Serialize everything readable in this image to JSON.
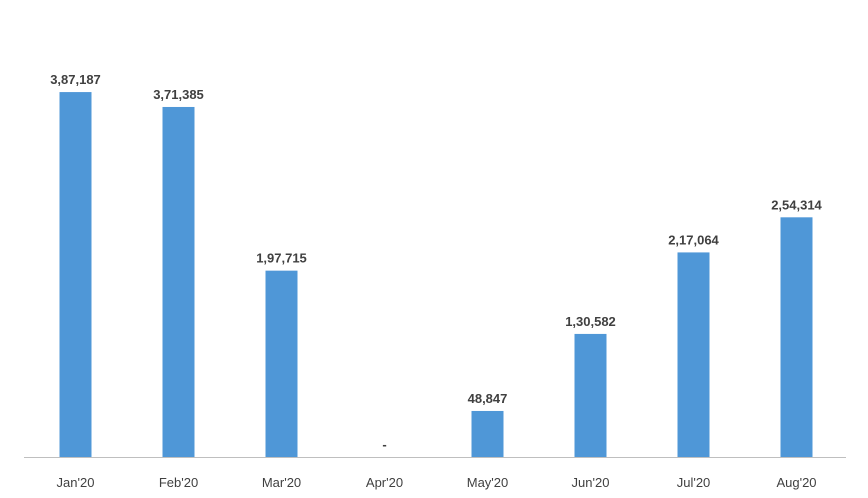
{
  "chart_data": {
    "type": "bar",
    "categories": [
      "Jan'20",
      "Feb'20",
      "Mar'20",
      "Apr'20",
      "May'20",
      "Jun'20",
      "Jul'20",
      "Aug'20"
    ],
    "values": [
      387187,
      371385,
      197715,
      0,
      48847,
      130582,
      217064,
      254314
    ],
    "data_labels": [
      "3,87,187",
      "3,71,385",
      "1,97,715",
      "-",
      "48,847",
      "1,30,582",
      "2,17,064",
      "2,54,314"
    ],
    "title": "",
    "xlabel": "",
    "ylabel": "",
    "ylim": [
      0,
      400000
    ],
    "grid": false,
    "legend": "none",
    "bar_color": "#4f97d7",
    "label_color": "#404040",
    "axis_color": "#bfbfbf"
  }
}
